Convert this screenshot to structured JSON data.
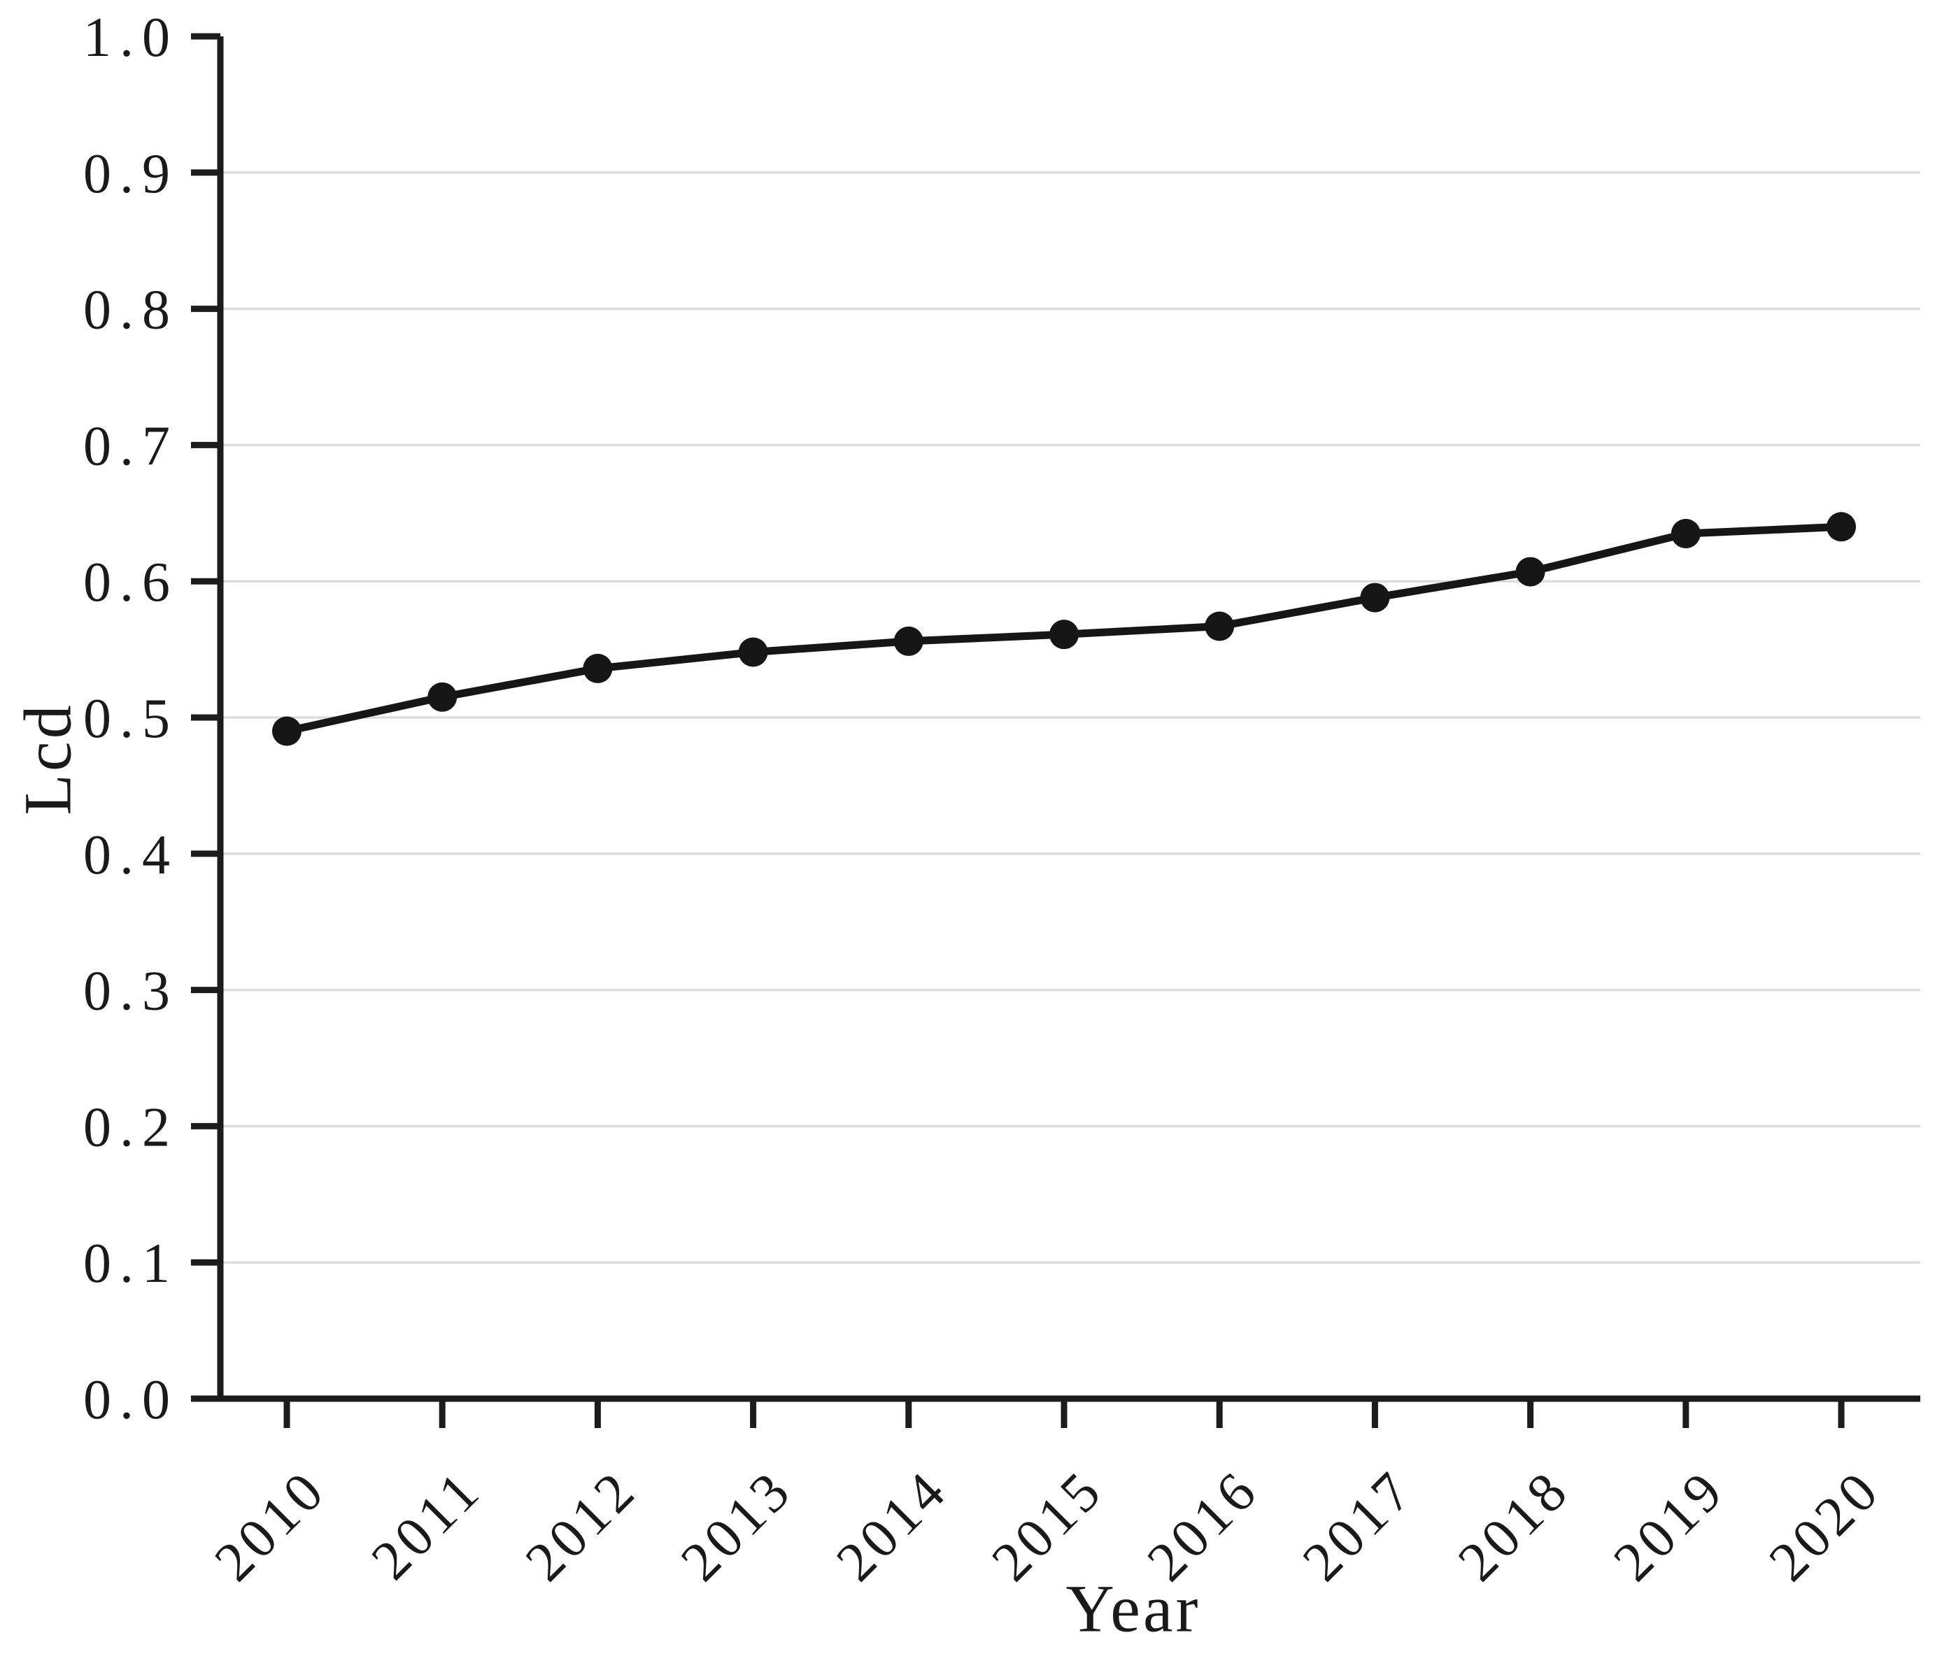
{
  "chart_data": {
    "type": "line",
    "title": "",
    "xlabel": "Year",
    "ylabel": "Lcd",
    "categories": [
      "2010",
      "2011",
      "2012",
      "2013",
      "2014",
      "2015",
      "2016",
      "2017",
      "2018",
      "2019",
      "2020"
    ],
    "series": [
      {
        "name": "Lcd",
        "values": [
          0.49,
          0.515,
          0.536,
          0.548,
          0.556,
          0.561,
          0.567,
          0.588,
          0.607,
          0.635,
          0.64
        ]
      }
    ],
    "ylim": [
      0.0,
      1.0
    ],
    "ytick_values": [
      0.0,
      0.1,
      0.2,
      0.3,
      0.4,
      0.5,
      0.6,
      0.7,
      0.8,
      0.9,
      1.0
    ],
    "ytick_labels": [
      "0.0",
      "0.1",
      "0.2",
      "0.3",
      "0.4",
      "0.5",
      "0.6",
      "0.7",
      "0.8",
      "0.9",
      "1.0"
    ],
    "grid": "horizontal",
    "legend": "none",
    "marker": "circle",
    "x_tick_rotation_deg": 45,
    "colors": {
      "line": "#161616",
      "marker": "#161616",
      "axis": "#1c1c1c",
      "grid": "#dcdcdc",
      "text": "#1a1a1a",
      "background": "#ffffff"
    }
  }
}
